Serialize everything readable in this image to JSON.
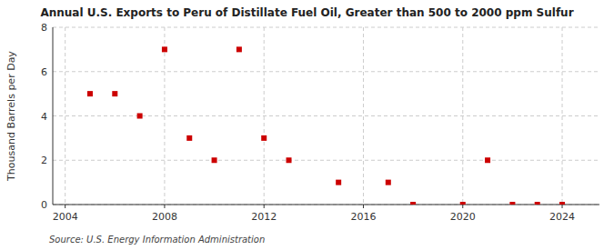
{
  "chart_data": {
    "type": "scatter",
    "title": "Annual U.S. Exports to Peru of Distillate Fuel Oil, Greater than 500 to 2000 ppm Sulfur",
    "ylabel": "Thousand Barrels per Day",
    "annotations": [
      "Source: U.S. Energy Information Administration"
    ],
    "x": [
      2005,
      2006,
      2007,
      2008,
      2009,
      2010,
      2011,
      2012,
      2013,
      2015,
      2017,
      2018,
      2020,
      2021,
      2022,
      2023,
      2024
    ],
    "values": [
      5,
      5,
      4,
      7,
      3,
      2,
      7,
      3,
      2,
      1,
      1,
      0.0,
      0.0,
      2,
      0.0,
      0.0,
      0.0
    ],
    "color": "#cc0000",
    "marker": "square",
    "xlim": [
      2003.5,
      2025.5
    ],
    "ylim": [
      0,
      8
    ],
    "xticks": [
      2004,
      2008,
      2012,
      2016,
      2020,
      2024
    ],
    "yticks": [
      0,
      2,
      4,
      6,
      8
    ],
    "grid": true
  }
}
